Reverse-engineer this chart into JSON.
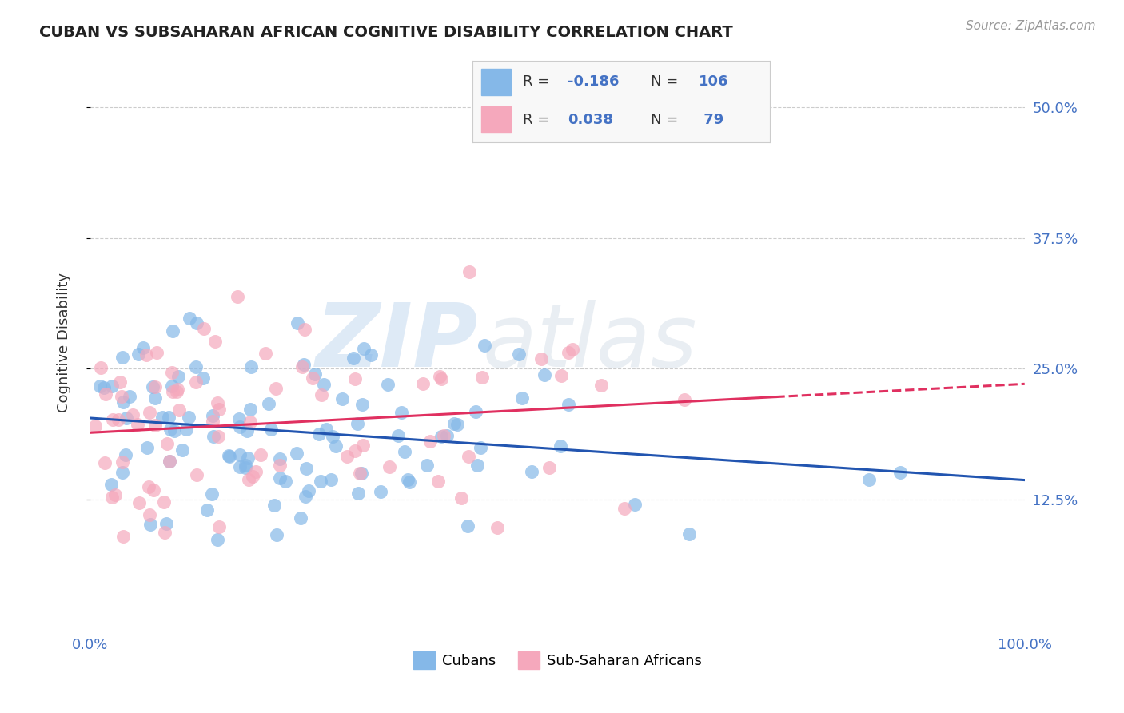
{
  "title": "CUBAN VS SUBSAHARAN AFRICAN COGNITIVE DISABILITY CORRELATION CHART",
  "source": "Source: ZipAtlas.com",
  "ylabel": "Cognitive Disability",
  "yticks": [
    0.125,
    0.25,
    0.375,
    0.5
  ],
  "ytick_labels": [
    "12.5%",
    "25.0%",
    "37.5%",
    "50.0%"
  ],
  "xlim": [
    0.0,
    1.0
  ],
  "ylim": [
    0.0,
    0.55
  ],
  "watermark_zip": "ZIP",
  "watermark_atlas": "atlas",
  "legend_R1_label": "R = ",
  "legend_R1_val": "-0.186",
  "legend_N1_label": "N = ",
  "legend_N1_val": "106",
  "legend_R2_label": "R = ",
  "legend_R2_val": "0.038",
  "legend_N2_label": "N =  ",
  "legend_N2_val": "79",
  "blue_color": "#85b8e8",
  "pink_color": "#f5a8bc",
  "line_blue": "#2255b0",
  "line_pink": "#e03060",
  "text_blue": "#4472c4",
  "text_dark": "#333333",
  "background": "#ffffff",
  "grid_color": "#cccccc",
  "legend_bg": "#f8f8f8",
  "legend_border": "#cccccc"
}
